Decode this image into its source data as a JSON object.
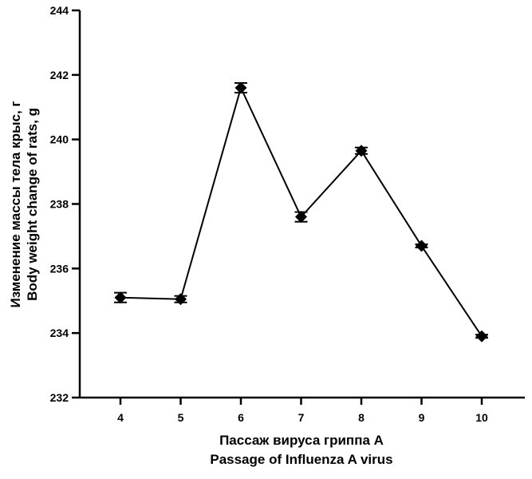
{
  "chart_data": {
    "type": "line",
    "x": [
      4,
      5,
      6,
      7,
      8,
      9,
      10
    ],
    "series": [
      {
        "values": [
          235.1,
          235.05,
          241.6,
          237.6,
          239.65,
          236.7,
          233.9
        ],
        "error": [
          0.15,
          0.1,
          0.15,
          0.15,
          0.1,
          0.05,
          0.05
        ]
      }
    ],
    "xlabel": [
      "Пассаж вируса гриппа А",
      "Passage of Influenza A virus"
    ],
    "ylabel": [
      "Изменение массы тела крыс, г",
      "Body weight change of rats, g"
    ],
    "xticks": [
      "4",
      "5",
      "6",
      "7",
      "8",
      "9",
      "10"
    ],
    "yticks": [
      "232",
      "234",
      "236",
      "238",
      "240",
      "242",
      "244"
    ],
    "ylim": [
      232,
      244
    ],
    "marker": "diamond",
    "color": "#000000",
    "grid": false,
    "legend": "none"
  }
}
